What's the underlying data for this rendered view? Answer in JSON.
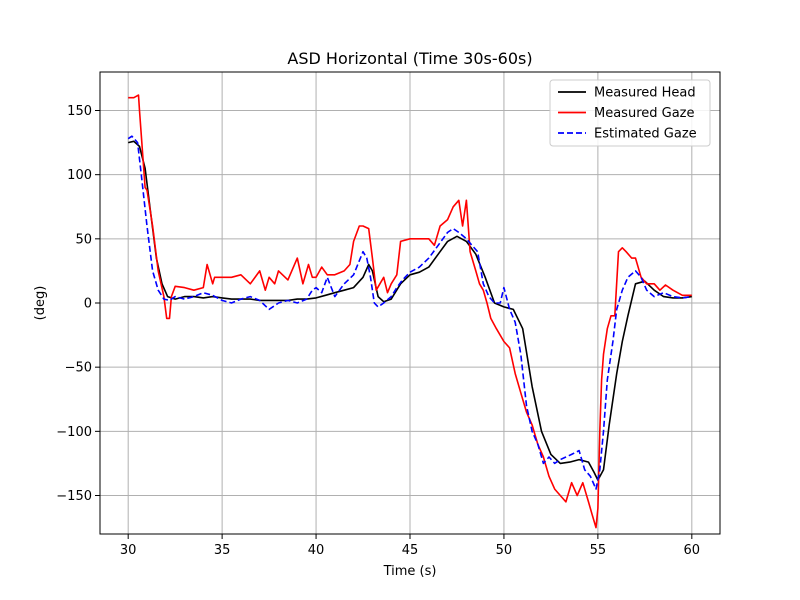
{
  "chart_data": {
    "type": "line",
    "title": "ASD Horizontal (Time 30s-60s)",
    "xlabel": "Time (s)",
    "ylabel": "(deg)",
    "xlim": [
      28.5,
      61.5
    ],
    "ylim": [
      -180,
      180
    ],
    "xticks": [
      30,
      35,
      40,
      45,
      50,
      55,
      60
    ],
    "yticks": [
      -150,
      -100,
      -50,
      0,
      50,
      100,
      150
    ],
    "xtick_labels": [
      "30",
      "35",
      "40",
      "45",
      "50",
      "55",
      "60"
    ],
    "ytick_labels": [
      "−150",
      "−100",
      "−50",
      "0",
      "50",
      "100",
      "150"
    ],
    "grid": true,
    "legend_position": "upper right",
    "series": [
      {
        "name": "Measured Head",
        "color": "#000000",
        "dash": "solid",
        "x": [
          30.0,
          30.3,
          30.6,
          30.9,
          31.2,
          31.5,
          31.8,
          32.1,
          32.5,
          33.0,
          33.5,
          34.0,
          34.5,
          35.0,
          35.5,
          36.0,
          36.5,
          37.0,
          37.5,
          38.0,
          38.5,
          39.0,
          39.5,
          40.0,
          40.5,
          41.0,
          41.5,
          42.0,
          42.5,
          42.8,
          43.0,
          43.3,
          43.6,
          44.0,
          44.5,
          45.0,
          45.5,
          46.0,
          46.5,
          47.0,
          47.5,
          48.0,
          48.5,
          49.0,
          49.5,
          50.0,
          50.5,
          51.0,
          51.5,
          52.0,
          52.5,
          53.0,
          53.5,
          54.0,
          54.5,
          54.8,
          55.0,
          55.3,
          55.6,
          56.0,
          56.3,
          56.6,
          57.0,
          57.5,
          58.0,
          58.5,
          59.0,
          59.5,
          60.0
        ],
        "y": [
          125,
          126,
          122,
          105,
          70,
          35,
          15,
          5,
          3,
          5,
          5,
          4,
          5,
          4,
          3,
          3,
          3,
          2,
          2,
          2,
          2,
          3,
          3,
          4,
          6,
          8,
          10,
          12,
          20,
          30,
          25,
          5,
          1,
          3,
          15,
          22,
          24,
          28,
          38,
          48,
          52,
          48,
          38,
          20,
          0,
          -3,
          -5,
          -20,
          -65,
          -100,
          -118,
          -125,
          -124,
          -122,
          -124,
          -132,
          -138,
          -130,
          -95,
          -55,
          -30,
          -10,
          15,
          17,
          10,
          5,
          4,
          4,
          5
        ]
      },
      {
        "name": "Measured Gaze",
        "color": "#ff0000",
        "dash": "solid",
        "x": [
          30.0,
          30.3,
          30.55,
          30.6,
          30.9,
          31.0,
          31.3,
          31.6,
          31.9,
          32.05,
          32.2,
          32.3,
          32.5,
          33.0,
          33.5,
          34.0,
          34.2,
          34.5,
          34.6,
          35.0,
          35.5,
          36.0,
          36.5,
          37.0,
          37.3,
          37.5,
          37.8,
          38.0,
          38.5,
          39.0,
          39.3,
          39.6,
          39.8,
          40.0,
          40.3,
          40.6,
          41.0,
          41.5,
          41.8,
          42.0,
          42.3,
          42.5,
          42.8,
          43.0,
          43.2,
          43.4,
          43.6,
          43.8,
          44.0,
          44.3,
          44.5,
          45.0,
          45.5,
          46.0,
          46.3,
          46.6,
          47.0,
          47.3,
          47.6,
          47.8,
          48.0,
          48.2,
          48.5,
          48.7,
          48.9,
          49.1,
          49.3,
          49.6,
          50.0,
          50.3,
          50.6,
          50.9,
          51.2,
          51.5,
          51.8,
          52.1,
          52.4,
          52.7,
          53.0,
          53.3,
          53.6,
          53.9,
          54.2,
          54.5,
          54.7,
          54.9,
          55.0,
          55.1,
          55.2,
          55.3,
          55.5,
          55.7,
          55.9,
          56.1,
          56.3,
          56.5,
          56.8,
          57.0,
          57.3,
          57.6,
          58.0,
          58.3,
          58.6,
          59.0,
          59.5,
          60.0
        ],
        "y": [
          160,
          160,
          162,
          150,
          90,
          88,
          60,
          25,
          5,
          -12,
          -12,
          5,
          13,
          12,
          10,
          12,
          30,
          15,
          20,
          20,
          20,
          22,
          15,
          25,
          10,
          20,
          15,
          25,
          18,
          35,
          15,
          30,
          20,
          20,
          28,
          22,
          22,
          25,
          30,
          48,
          60,
          60,
          58,
          35,
          10,
          15,
          20,
          8,
          15,
          22,
          48,
          50,
          50,
          50,
          45,
          60,
          65,
          75,
          80,
          60,
          80,
          40,
          25,
          15,
          10,
          0,
          -12,
          -20,
          -30,
          -35,
          -55,
          -70,
          -85,
          -95,
          -110,
          -120,
          -135,
          -145,
          -150,
          -155,
          -140,
          -150,
          -140,
          -155,
          -165,
          -175,
          -160,
          -100,
          -60,
          -40,
          -20,
          -10,
          -10,
          40,
          43,
          40,
          35,
          35,
          20,
          15,
          15,
          10,
          14,
          10,
          6,
          6
        ]
      },
      {
        "name": "Estimated Gaze",
        "color": "#0000ff",
        "dash": "dashed",
        "x": [
          30.0,
          30.2,
          30.5,
          30.7,
          31.0,
          31.3,
          31.6,
          31.9,
          32.2,
          32.5,
          33.0,
          33.5,
          34.0,
          34.5,
          35.0,
          35.5,
          36.0,
          36.5,
          37.0,
          37.5,
          38.0,
          38.5,
          39.0,
          39.5,
          39.8,
          40.0,
          40.3,
          40.6,
          41.0,
          41.5,
          42.0,
          42.5,
          42.7,
          42.9,
          43.1,
          43.3,
          43.6,
          44.0,
          44.3,
          44.6,
          45.0,
          45.5,
          46.0,
          46.5,
          47.0,
          47.3,
          47.6,
          48.0,
          48.3,
          48.6,
          48.9,
          49.2,
          49.5,
          49.8,
          50.0,
          50.3,
          50.6,
          50.9,
          51.2,
          51.5,
          51.8,
          52.1,
          52.4,
          52.7,
          53.0,
          53.3,
          53.6,
          54.0,
          54.3,
          54.6,
          54.9,
          55.1,
          55.3,
          55.5,
          55.8,
          56.0,
          56.3,
          56.6,
          57.0,
          57.3,
          57.6,
          58.0,
          58.5,
          59.0,
          59.5,
          60.0
        ],
        "y": [
          128,
          130,
          125,
          100,
          60,
          25,
          10,
          3,
          2,
          5,
          3,
          5,
          8,
          6,
          2,
          0,
          3,
          5,
          2,
          -5,
          0,
          2,
          0,
          3,
          10,
          12,
          8,
          20,
          5,
          15,
          22,
          40,
          35,
          20,
          0,
          -3,
          0,
          5,
          12,
          18,
          24,
          28,
          35,
          45,
          55,
          58,
          55,
          50,
          45,
          40,
          15,
          5,
          0,
          0,
          12,
          -5,
          -15,
          -40,
          -80,
          -100,
          -110,
          -125,
          -120,
          -125,
          -122,
          -120,
          -118,
          -115,
          -130,
          -135,
          -145,
          -130,
          -100,
          -60,
          -30,
          -5,
          10,
          20,
          25,
          20,
          10,
          5,
          8,
          5,
          4,
          5
        ]
      }
    ]
  }
}
